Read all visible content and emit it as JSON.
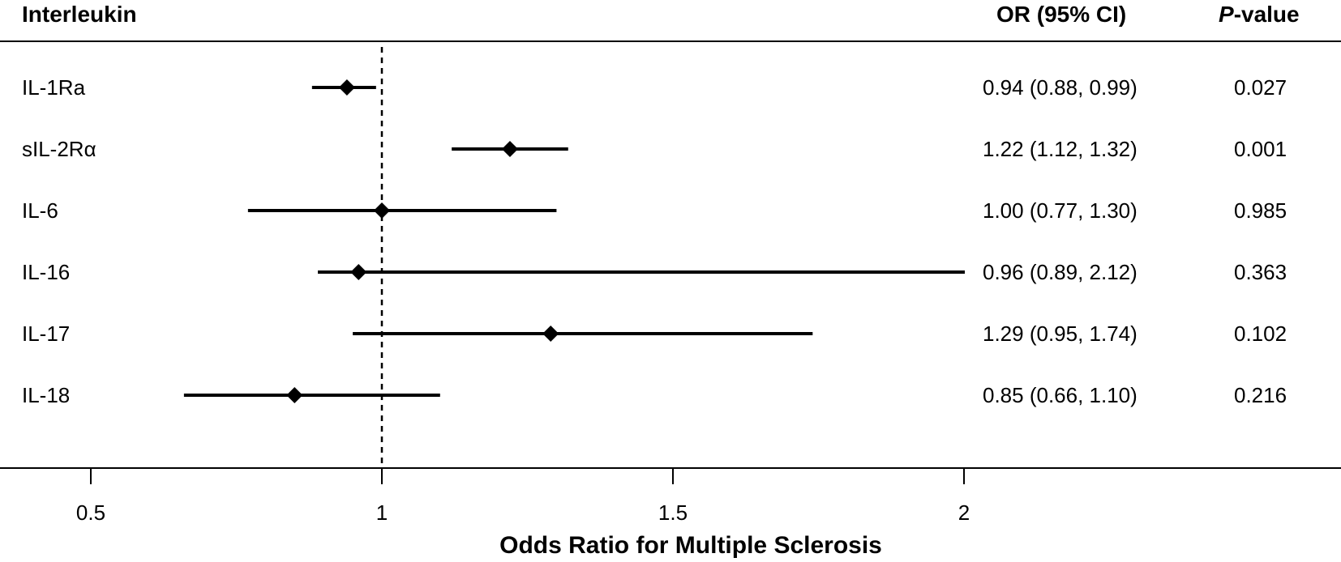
{
  "header": {
    "label_col": "Interleukin",
    "or_col": "OR (95% CI)",
    "p_col_italic": "P",
    "p_col_rest": "-value"
  },
  "chart_data": {
    "type": "forest",
    "xlabel": "Odds Ratio for Multiple Sclerosis",
    "xlim": [
      0.5,
      2.1
    ],
    "xticks": [
      0.5,
      1,
      1.5,
      2
    ],
    "xtick_labels": [
      "0.5",
      "1",
      "1.5",
      "2"
    ],
    "reference_line": 1,
    "rows": [
      {
        "label": "IL-1Ra",
        "or": 0.94,
        "lower": 0.88,
        "upper": 0.99,
        "or_text": "0.94 (0.88, 0.99)",
        "p": "0.027"
      },
      {
        "label": "sIL-2Rα",
        "or": 1.22,
        "lower": 1.12,
        "upper": 1.32,
        "or_text": "1.22 (1.12, 1.32)",
        "p": "0.001"
      },
      {
        "label": "IL-6",
        "or": 1.0,
        "lower": 0.77,
        "upper": 1.3,
        "or_text": "1.00 (0.77, 1.30)",
        "p": "0.985"
      },
      {
        "label": "IL-16",
        "or": 0.96,
        "lower": 0.89,
        "upper": 2.12,
        "or_text": "0.96 (0.89, 2.12)",
        "p": "0.363"
      },
      {
        "label": "IL-17",
        "or": 1.29,
        "lower": 0.95,
        "upper": 1.74,
        "or_text": "1.29 (0.95, 1.74)",
        "p": "0.102"
      },
      {
        "label": "IL-18",
        "or": 0.85,
        "lower": 0.66,
        "upper": 1.1,
        "or_text": "0.85 (0.66, 1.10)",
        "p": "0.216"
      }
    ]
  }
}
